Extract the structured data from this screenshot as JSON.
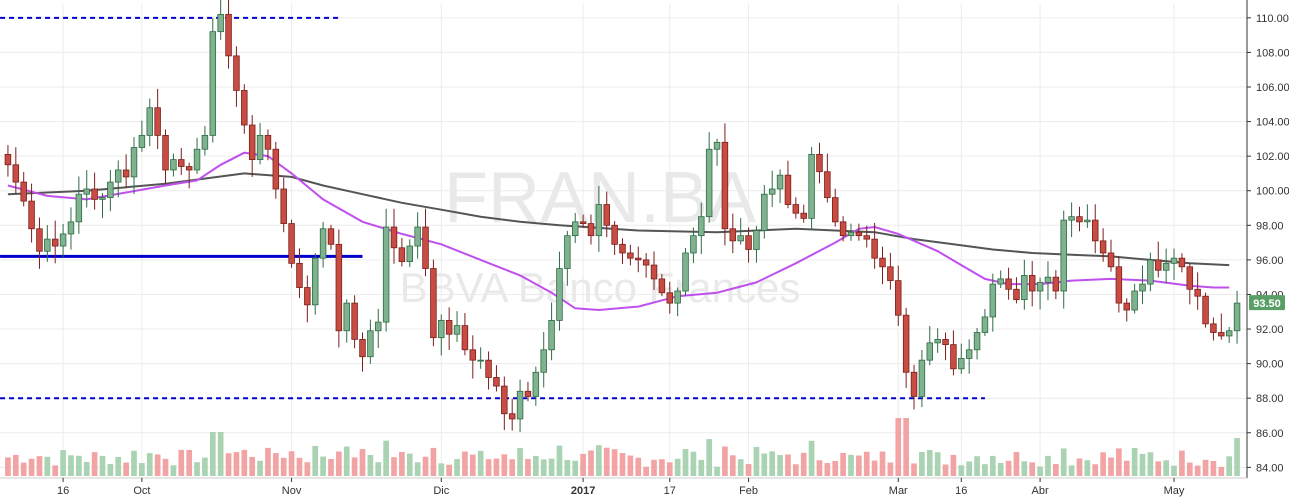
{
  "watermark": {
    "symbol": "FRAN.BA",
    "name": "BBVA Banco Frances"
  },
  "last_price_label": "93.50",
  "colors": {
    "up_body": "#7fb38f",
    "up_border": "#2f6b44",
    "down_body": "#c94c44",
    "down_border": "#7a1f1a",
    "vol_up": "#a9d3b2",
    "vol_down": "#f2a4a4",
    "sma_short": "#c050ee",
    "sma_long": "#555555",
    "support": "#0000cc",
    "price_tag": "#5aa066"
  },
  "chart_data": {
    "type": "candlestick",
    "ylim": [
      83.5,
      110.8
    ],
    "y_ticks": [
      "110.00",
      "108.00",
      "106.00",
      "104.00",
      "102.00",
      "100.00",
      "98.00",
      "96.00",
      "94.00",
      "92.00",
      "90.00",
      "88.00",
      "86.00",
      "84.00"
    ],
    "x_ticks": [
      {
        "label": "16",
        "index": 7,
        "bold": false
      },
      {
        "label": "Oct",
        "index": 17,
        "bold": false
      },
      {
        "label": "Nov",
        "index": 36,
        "bold": false
      },
      {
        "label": "Dic",
        "index": 55,
        "bold": false
      },
      {
        "label": "2017",
        "index": 73,
        "bold": true
      },
      {
        "label": "17",
        "index": 84,
        "bold": false
      },
      {
        "label": "Feb",
        "index": 94,
        "bold": false
      },
      {
        "label": "Mar",
        "index": 113,
        "bold": false
      },
      {
        "label": "16",
        "index": 121,
        "bold": false
      },
      {
        "label": "Abr",
        "index": 131,
        "bold": false
      },
      {
        "label": "May",
        "index": 148,
        "bold": false
      }
    ],
    "closes": [
      101.5,
      100.5,
      99.4,
      97.8,
      96.5,
      97.2,
      96.8,
      97.5,
      98.2,
      99.8,
      100.1,
      99.5,
      99.6,
      100.5,
      101.2,
      100.8,
      102.5,
      103.2,
      104.8,
      103.2,
      101.2,
      101.8,
      101.4,
      101.2,
      102.4,
      103.2,
      109.2,
      110.2,
      107.8,
      105.8,
      103.8,
      101.8,
      103.2,
      102.4,
      100.1,
      98.1,
      95.8,
      94.4,
      93.4,
      96.1,
      97.8,
      96.9,
      91.9,
      93.5,
      91.4,
      90.4,
      91.9,
      92.4,
      97.9,
      96.7,
      95.9,
      96.8,
      97.9,
      95.5,
      91.5,
      92.5,
      91.7,
      92.2,
      90.8,
      90.2,
      90.2,
      89.2,
      88.7,
      87.1,
      86.8,
      88.4,
      88.1,
      89.5,
      90.8,
      92.5,
      95.5,
      97.4,
      98.2,
      98.1,
      97.4,
      99.2,
      98.0,
      96.9,
      96.4,
      96.1,
      96.0,
      95.7,
      94.9,
      94.1,
      93.5,
      94.2,
      96.4,
      97.4,
      98.5,
      102.4,
      102.8,
      97.8,
      97.1,
      97.4,
      96.6,
      97.7,
      99.8,
      100.1,
      100.9,
      99.2,
      98.7,
      98.4,
      102.1,
      101.1,
      99.6,
      98.2,
      97.4,
      97.6,
      97.4,
      97.2,
      96.1,
      95.6,
      94.8,
      92.8,
      89.5,
      88.1,
      90.2,
      91.2,
      91.4,
      91.1,
      89.7,
      90.3,
      90.8,
      91.8,
      92.7,
      94.6,
      94.9,
      94.3,
      93.7,
      95.1,
      94.2,
      94.7,
      95.0,
      94.2,
      98.3,
      98.5,
      98.2,
      98.3,
      97.1,
      96.4,
      95.6,
      93.5,
      93.1,
      94.2,
      94.6,
      96.0,
      95.4,
      95.8,
      96.1,
      95.6,
      94.3,
      93.9,
      92.3,
      91.8,
      91.6,
      91.9,
      93.5
    ],
    "last_close": 93.5,
    "sma_short_line": [
      [
        0,
        100.3
      ],
      [
        5,
        99.7
      ],
      [
        10,
        99.5
      ],
      [
        15,
        99.9
      ],
      [
        20,
        100.3
      ],
      [
        24,
        100.6
      ],
      [
        27,
        101.5
      ],
      [
        30,
        102.2
      ],
      [
        33,
        102.0
      ],
      [
        36,
        101.0
      ],
      [
        40,
        99.5
      ],
      [
        45,
        98.2
      ],
      [
        50,
        97.5
      ],
      [
        55,
        96.9
      ],
      [
        60,
        96.0
      ],
      [
        65,
        95.1
      ],
      [
        69,
        94.1
      ],
      [
        72,
        93.2
      ],
      [
        75,
        93.1
      ],
      [
        80,
        93.3
      ],
      [
        85,
        93.9
      ],
      [
        90,
        94.1
      ],
      [
        95,
        94.7
      ],
      [
        100,
        95.8
      ],
      [
        105,
        97.0
      ],
      [
        108,
        97.8
      ],
      [
        110,
        97.9
      ],
      [
        113,
        97.5
      ],
      [
        118,
        96.5
      ],
      [
        121,
        95.7
      ],
      [
        124,
        94.9
      ],
      [
        127,
        94.6
      ],
      [
        131,
        94.6
      ],
      [
        135,
        94.8
      ],
      [
        140,
        94.9
      ],
      [
        145,
        94.8
      ],
      [
        150,
        94.5
      ],
      [
        153,
        94.4
      ],
      [
        155,
        94.4
      ]
    ],
    "sma_long_line": [
      [
        0,
        99.8
      ],
      [
        10,
        100.0
      ],
      [
        20,
        100.4
      ],
      [
        30,
        101.0
      ],
      [
        36,
        100.8
      ],
      [
        40,
        100.3
      ],
      [
        45,
        99.8
      ],
      [
        50,
        99.3
      ],
      [
        55,
        98.9
      ],
      [
        60,
        98.5
      ],
      [
        65,
        98.2
      ],
      [
        70,
        98.0
      ],
      [
        80,
        97.7
      ],
      [
        90,
        97.6
      ],
      [
        100,
        97.8
      ],
      [
        110,
        97.6
      ],
      [
        115,
        97.2
      ],
      [
        120,
        96.9
      ],
      [
        125,
        96.6
      ],
      [
        130,
        96.4
      ],
      [
        135,
        96.3
      ],
      [
        140,
        96.2
      ],
      [
        145,
        96.0
      ],
      [
        150,
        95.8
      ],
      [
        155,
        95.7
      ]
    ],
    "levels": [
      {
        "name": "resistance-dashed",
        "value": 110.0,
        "from": 0,
        "to": 42,
        "style": "dashed"
      },
      {
        "name": "support-solid",
        "value": 96.2,
        "from": 0,
        "to": 45,
        "style": "solid"
      },
      {
        "name": "support-dashed",
        "value": 88.0,
        "from": 0,
        "to": 124,
        "style": "dashed"
      }
    ]
  }
}
